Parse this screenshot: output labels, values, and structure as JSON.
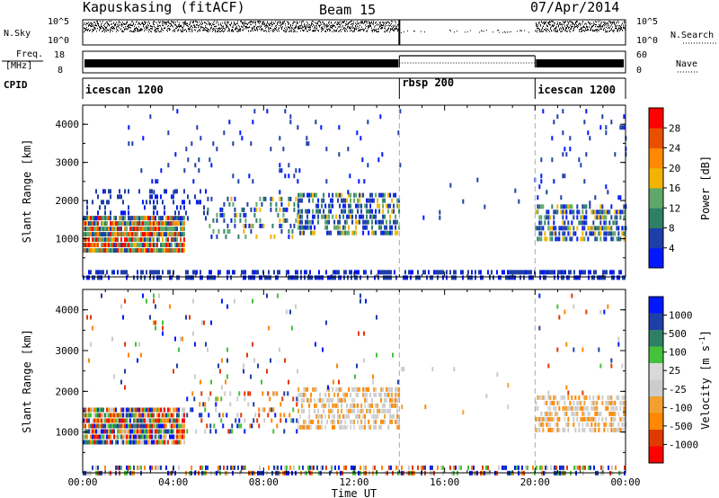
{
  "header": {
    "station": "Kapuskasing (fitACF)",
    "beam": "Beam 15",
    "date": "07/Apr/2014"
  },
  "status_labels": {
    "nsky": "N.Sky",
    "freq_top": "Freq.",
    "freq_unit": "[MHz]",
    "cpid": "CPID",
    "nsearch": "N.Search",
    "nave": "Nave",
    "nsky_ticks": [
      "10^5",
      "10^0"
    ],
    "nsearch_ticks": [
      "10^5",
      "10^0"
    ],
    "freq_ticks": [
      "18",
      "8"
    ],
    "nave_ticks": [
      "60",
      "0"
    ]
  },
  "cpid_segments": [
    {
      "name": "icescan 1200",
      "start_h": 0,
      "end_h": 14
    },
    {
      "name": "rbsp 200",
      "start_h": 14,
      "end_h": 20
    },
    {
      "name": "icescan 1200",
      "start_h": 20,
      "end_h": 24
    }
  ],
  "colors": {
    "power": [
      "#0018ff",
      "#1e3fa8",
      "#2f7f66",
      "#5fa86a",
      "#f2b400",
      "#ff8a00",
      "#e85000",
      "#ff0000"
    ],
    "velocity": [
      "#ff0000",
      "#e03a00",
      "#ff8800",
      "#f3a030",
      "#cccccc",
      "#d9d9d9",
      "#44c23a",
      "#2f7f66",
      "#1e3fa8",
      "#0018ff"
    ]
  },
  "chart_data": [
    {
      "type": "heatmap",
      "name": "power",
      "xlabel": "",
      "ylabel": "Slant Range [km]",
      "xlim": [
        0,
        24
      ],
      "ylim": [
        0,
        4500
      ],
      "yticks": [
        1000,
        2000,
        3000,
        4000
      ],
      "colorbar": {
        "label": "Power [dB]",
        "range": [
          0,
          32
        ],
        "ticks": [
          4,
          8,
          12,
          16,
          20,
          24,
          28
        ]
      },
      "regions": [
        {
          "x0": 0,
          "x1": 4.5,
          "y0": 700,
          "y1": 1600,
          "density": 0.95,
          "mix": "strong"
        },
        {
          "x0": 0,
          "x1": 5.5,
          "y0": 1500,
          "y1": 2300,
          "density": 0.2,
          "mix": "weak"
        },
        {
          "x0": 5.5,
          "x1": 9.5,
          "y0": 1000,
          "y1": 2100,
          "density": 0.25,
          "mix": "mid"
        },
        {
          "x0": 9.5,
          "x1": 14,
          "y0": 1200,
          "y1": 2200,
          "density": 0.55,
          "mix": "mid"
        },
        {
          "x0": 2,
          "x1": 14,
          "y0": 2200,
          "y1": 4400,
          "density": 0.03,
          "mix": "weak"
        },
        {
          "x0": 14,
          "x1": 20,
          "y0": 1500,
          "y1": 2600,
          "density": 0.02,
          "mix": "weak"
        },
        {
          "x0": 20,
          "x1": 24,
          "y0": 1000,
          "y1": 1900,
          "density": 0.6,
          "mix": "mid"
        },
        {
          "x0": 20,
          "x1": 24,
          "y0": 1900,
          "y1": 4400,
          "density": 0.03,
          "mix": "weak"
        },
        {
          "x0": 0,
          "x1": 24,
          "y0": 0,
          "y1": 180,
          "density": 0.5,
          "mix": "weak"
        }
      ]
    },
    {
      "type": "heatmap",
      "name": "velocity",
      "xlabel": "Time UT",
      "ylabel": "Slant Range [km]",
      "xlim": [
        0,
        24
      ],
      "ylim": [
        0,
        4500
      ],
      "xticks": [
        "00:00",
        "04:00",
        "08:00",
        "12:00",
        "16:00",
        "20:00",
        "00:00"
      ],
      "yticks": [
        1000,
        2000,
        3000,
        4000
      ],
      "colorbar": {
        "label": "Velocity [m s",
        "label_sup": "-1",
        "label_end": "]",
        "ticks": [
          "1000",
          "500",
          "100",
          "25",
          "-25",
          "-100",
          "-500",
          "-1000"
        ]
      },
      "regions": [
        {
          "x0": 0,
          "x1": 4.5,
          "y0": 700,
          "y1": 1600,
          "density": 0.95,
          "mix": "vstrong"
        },
        {
          "x0": 4.5,
          "x1": 9.5,
          "y0": 1000,
          "y1": 2000,
          "density": 0.2,
          "mix": "vmid"
        },
        {
          "x0": 9.5,
          "x1": 14,
          "y0": 1100,
          "y1": 2100,
          "density": 0.55,
          "mix": "vgrey"
        },
        {
          "x0": 0,
          "x1": 14,
          "y0": 2100,
          "y1": 4400,
          "density": 0.03,
          "mix": "vmid"
        },
        {
          "x0": 14,
          "x1": 20,
          "y0": 1500,
          "y1": 2600,
          "density": 0.02,
          "mix": "vgrey"
        },
        {
          "x0": 20,
          "x1": 24,
          "y0": 1000,
          "y1": 1900,
          "density": 0.6,
          "mix": "vgrey"
        },
        {
          "x0": 20,
          "x1": 24,
          "y0": 1900,
          "y1": 4400,
          "density": 0.03,
          "mix": "vmid"
        },
        {
          "x0": 0,
          "x1": 24,
          "y0": 0,
          "y1": 180,
          "density": 0.5,
          "mix": "vmid"
        }
      ]
    }
  ]
}
